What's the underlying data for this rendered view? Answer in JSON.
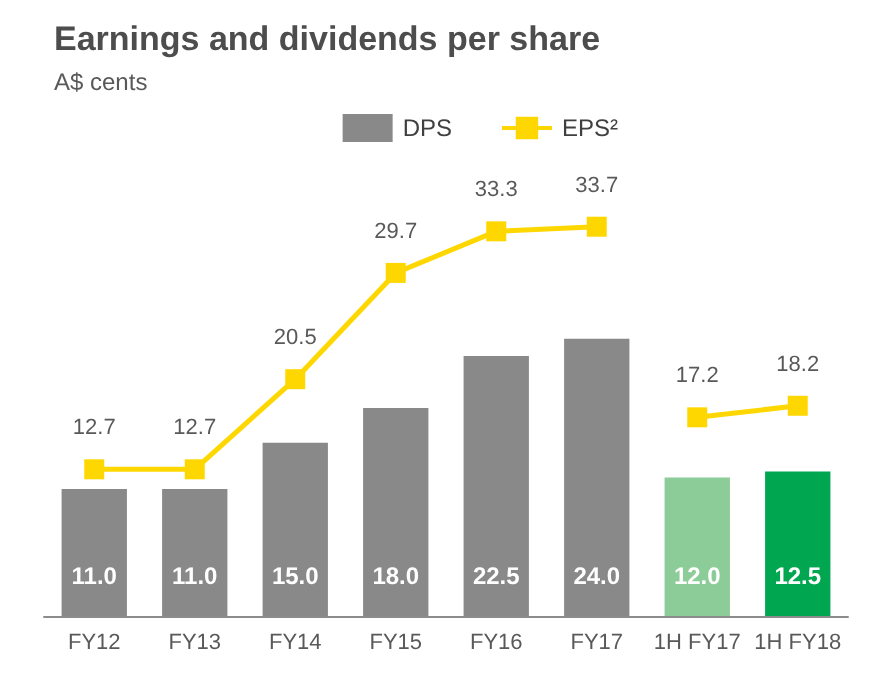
{
  "chart_data": {
    "type": "bar",
    "title": "Earnings and dividends per share",
    "subtitle": "A$ cents",
    "categories": [
      "FY12",
      "FY13",
      "FY14",
      "FY15",
      "FY16",
      "FY17",
      "1H FY17",
      "1H FY18"
    ],
    "series": [
      {
        "name": "DPS",
        "color": "#898989",
        "colors": [
          "#898989",
          "#898989",
          "#898989",
          "#898989",
          "#898989",
          "#898989",
          "#8ccc98",
          "#00a650"
        ],
        "values": [
          11,
          11,
          15,
          18,
          22.5,
          24,
          12,
          12.5
        ],
        "value_labels": [
          "11.0",
          "11.0",
          "15.0",
          "18.0",
          "22.5",
          "24.0",
          "12.0",
          "12.5"
        ]
      },
      {
        "name": "EPS²",
        "type": "line",
        "color": "#ffd700",
        "values": [
          12.7,
          12.7,
          20.5,
          29.7,
          33.3,
          33.7,
          null,
          null
        ],
        "value_labels": [
          "12.7",
          "12.7",
          "20.5",
          "29.7",
          "33.3",
          "33.7",
          null,
          null
        ]
      },
      {
        "type": "line",
        "color": "#ffd700",
        "values": [
          null,
          null,
          null,
          null,
          null,
          null,
          17.2,
          18.2
        ],
        "value_labels": [
          null,
          null,
          null,
          null,
          null,
          null,
          "17.2",
          "18.2"
        ]
      }
    ],
    "legend": "top right",
    "marker": "square"
  }
}
